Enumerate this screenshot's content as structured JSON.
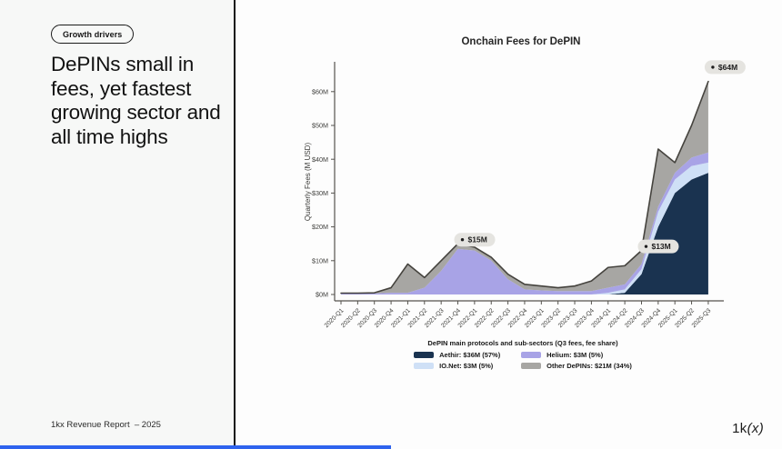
{
  "left_panel": {
    "badge": "Growth drivers",
    "title": "DePINs small in fees, yet fastest growing sector and all time highs",
    "footer": "1kx Revenue Report  – 2025"
  },
  "footer_logo": {
    "prefix": "1k",
    "suffix": "(x)"
  },
  "chart_data": {
    "type": "area",
    "title": "Onchain Fees for DePIN",
    "ylabel": "Quarterly Fees (M USD)",
    "ylim": [
      0,
      66
    ],
    "ytick_step": 10,
    "grid": false,
    "legend_position": "bottom",
    "categories": [
      "2020-Q1",
      "2020-Q2",
      "2020-Q3",
      "2020-Q4",
      "2021-Q1",
      "2021-Q2",
      "2021-Q3",
      "2021-Q4",
      "2022-Q1",
      "2022-Q2",
      "2022-Q3",
      "2022-Q4",
      "2023-Q1",
      "2023-Q2",
      "2023-Q3",
      "2023-Q4",
      "2024-Q1",
      "2024-Q2",
      "2024-Q3",
      "2024-Q4",
      "2025-Q1",
      "2025-Q2",
      "2025-Q3"
    ],
    "series": [
      {
        "name": "Aethir",
        "color": "#1a3350",
        "values": [
          0,
          0,
          0,
          0,
          0,
          0,
          0,
          0,
          0,
          0,
          0,
          0,
          0,
          0,
          0,
          0,
          0,
          0.5,
          6,
          20,
          30,
          34,
          36
        ]
      },
      {
        "name": "IO.Net",
        "color": "#cfe0f6",
        "values": [
          0,
          0,
          0,
          0,
          0,
          0,
          0,
          0,
          0,
          0,
          0,
          0,
          0,
          0,
          0,
          0,
          0.5,
          1,
          1.5,
          4.5,
          4,
          4,
          3
        ]
      },
      {
        "name": "Helium",
        "color": "#a8a3e6",
        "values": [
          0.3,
          0.3,
          0.3,
          0.5,
          0.5,
          2,
          7,
          13.5,
          13,
          10,
          4.5,
          1.5,
          1.2,
          1,
          1,
          1,
          1.5,
          1.5,
          1.5,
          1.5,
          2,
          2.5,
          3
        ]
      },
      {
        "name": "Other DePINs",
        "color": "#a7a6a3",
        "values": [
          0.1,
          0.1,
          0.2,
          1.5,
          8.5,
          3,
          3,
          1.5,
          1,
          1,
          1.5,
          1.5,
          1.3,
          1,
          1.5,
          3,
          6,
          5.5,
          4,
          17,
          3,
          9.5,
          21
        ]
      }
    ],
    "line_color": "#45433e",
    "annotation_pill_color": "#e5e4e0",
    "annotations": [
      {
        "label": "$15M",
        "category": "2021-Q4",
        "value": 15
      },
      {
        "label": "$13M",
        "category": "2024-Q3",
        "value": 13
      },
      {
        "label": "$64M",
        "category": "2025-Q3",
        "value": 64
      }
    ],
    "legend": {
      "title": "DePIN main protocols and sub-sectors (Q3 fees, fee share)",
      "items": [
        {
          "label": "Aethir: $36M (57%)",
          "color": "#1a3350"
        },
        {
          "label": "Helium: $3M (5%)",
          "color": "#a8a3e6"
        },
        {
          "label": "IO.Net: $3M (5%)",
          "color": "#cfe0f6"
        },
        {
          "label": "Other DePINs: $21M (34%)",
          "color": "#a7a6a3"
        }
      ]
    }
  }
}
